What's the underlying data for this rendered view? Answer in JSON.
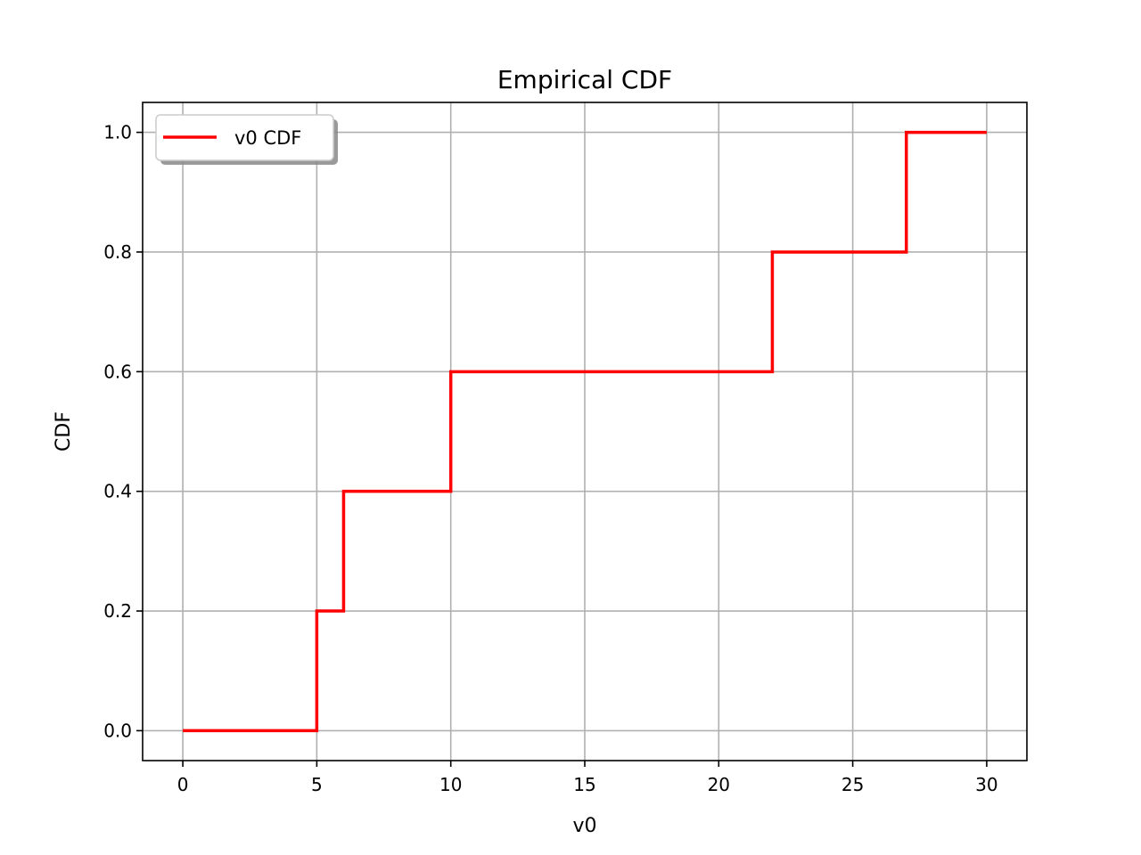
{
  "chart_data": {
    "type": "line",
    "step": "post",
    "title": "Empirical CDF",
    "xlabel": "v0",
    "ylabel": "CDF",
    "xlim": [
      -1.5,
      31.5
    ],
    "ylim": [
      -0.05,
      1.05
    ],
    "xticks": [
      0,
      5,
      10,
      15,
      20,
      25,
      30
    ],
    "xtick_labels": [
      "0",
      "5",
      "10",
      "15",
      "20",
      "25",
      "30"
    ],
    "yticks": [
      0.0,
      0.2,
      0.4,
      0.6,
      0.8,
      1.0
    ],
    "ytick_labels": [
      "0.0",
      "0.2",
      "0.4",
      "0.6",
      "0.8",
      "1.0"
    ],
    "grid": true,
    "legend": {
      "position": "top-left",
      "shadow": true
    },
    "series": [
      {
        "name": "v0 CDF",
        "color": "#ff0000",
        "x": [
          0,
          5,
          6,
          10,
          22,
          27,
          30
        ],
        "y": [
          0.0,
          0.2,
          0.4,
          0.6,
          0.8,
          1.0,
          1.0
        ]
      }
    ]
  }
}
